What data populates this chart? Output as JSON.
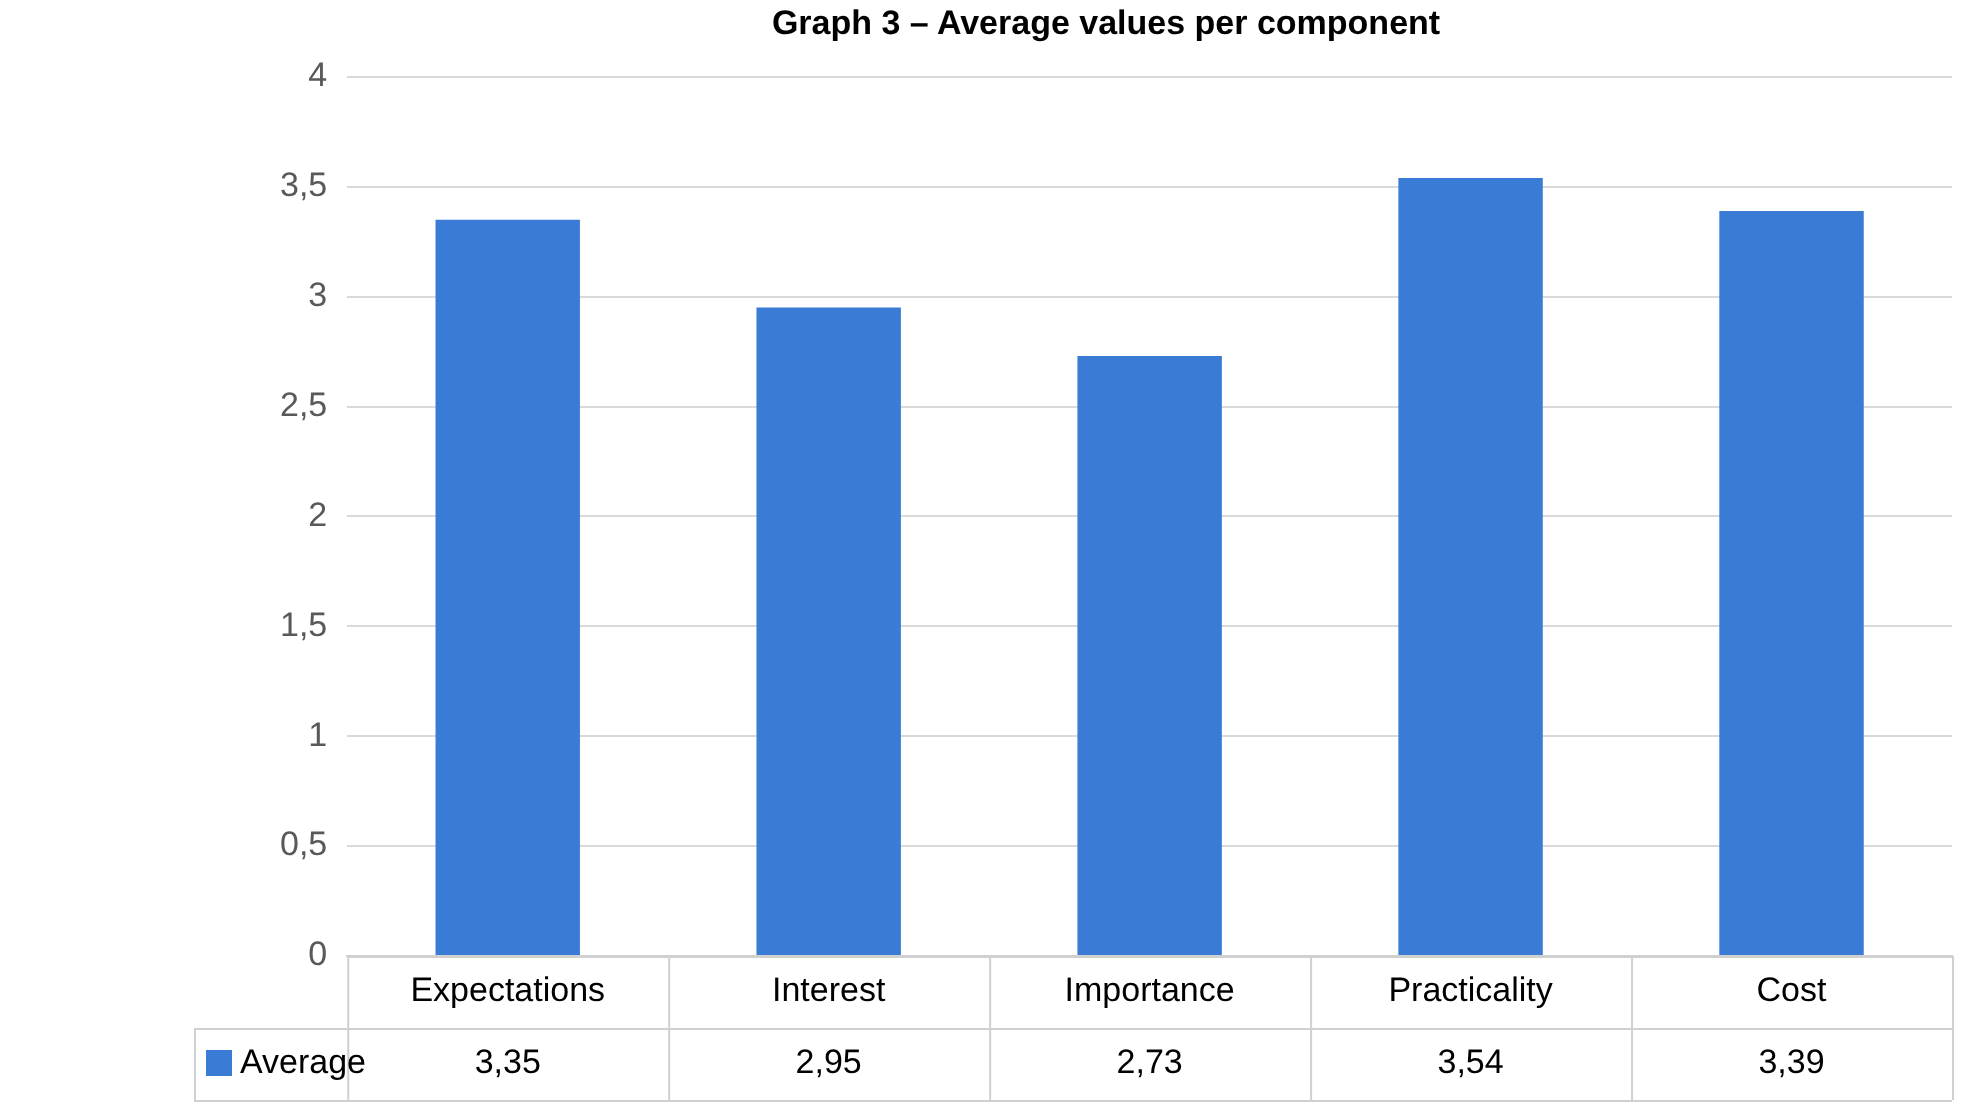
{
  "chart_data": {
    "type": "bar",
    "title": "Graph 3 – Average values per component",
    "categories": [
      "Expectations",
      "Interest",
      "Importance",
      "Practicality",
      "Cost"
    ],
    "series": [
      {
        "name": "Average",
        "color": "#3a7bd5",
        "values": [
          3.35,
          2.95,
          2.73,
          3.54,
          3.39
        ],
        "value_labels": [
          "3,35",
          "2,95",
          "2,73",
          "3,54",
          "3,39"
        ]
      }
    ],
    "ylim": [
      0,
      4
    ],
    "yticks": [
      0,
      {
        "value": 0.5,
        "label": "0,5"
      },
      1,
      {
        "value": 1.5,
        "label": "1,5"
      },
      2,
      {
        "value": 2.5,
        "label": "2,5"
      },
      3,
      {
        "value": 3.5,
        "label": "3,5"
      },
      4
    ],
    "grid": "y",
    "legend": "bottom"
  }
}
